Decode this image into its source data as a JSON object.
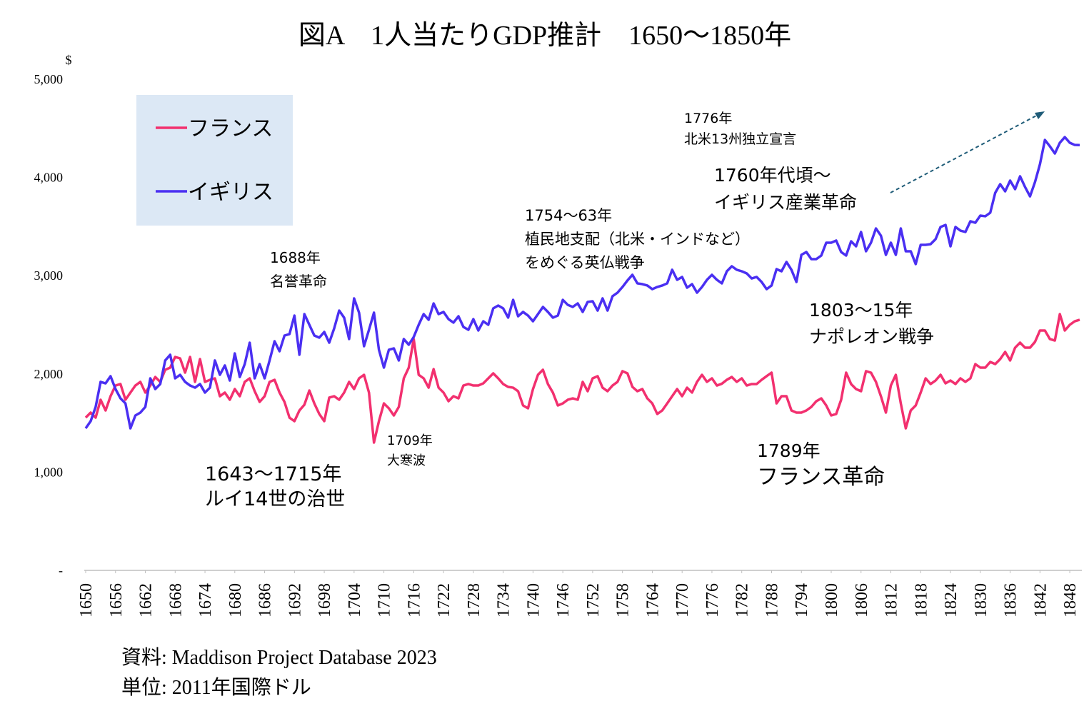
{
  "chart_data": {
    "type": "line",
    "title": "図A　1人当たりGDP推計　1650〜1850年",
    "y_unit": "$",
    "source": "資料: Maddison Project Database 2023",
    "unit_note": "単位: 2011年国際ドル",
    "xlim": [
      1650,
      1850
    ],
    "xticks": [
      1650,
      1656,
      1662,
      1668,
      1674,
      1680,
      1686,
      1692,
      1698,
      1704,
      1710,
      1716,
      1722,
      1728,
      1734,
      1740,
      1746,
      1752,
      1758,
      1764,
      1770,
      1776,
      1782,
      1788,
      1794,
      1800,
      1806,
      1812,
      1818,
      1824,
      1830,
      1836,
      1842,
      1848
    ],
    "ylim": [
      0,
      5000
    ],
    "yticks": [
      {
        "value": 0,
        "label": "-"
      },
      {
        "value": 1000,
        "label": "1,000"
      },
      {
        "value": 2000,
        "label": "2,000"
      },
      {
        "value": 3000,
        "label": "3,000"
      },
      {
        "value": 4000,
        "label": "4,000"
      },
      {
        "value": 5000,
        "label": "5,000"
      }
    ],
    "grid": false,
    "x": [
      1650,
      1651,
      1652,
      1653,
      1654,
      1655,
      1656,
      1657,
      1658,
      1659,
      1660,
      1661,
      1662,
      1663,
      1664,
      1665,
      1666,
      1667,
      1668,
      1669,
      1670,
      1671,
      1672,
      1673,
      1674,
      1675,
      1676,
      1677,
      1678,
      1679,
      1680,
      1681,
      1682,
      1683,
      1684,
      1685,
      1686,
      1687,
      1688,
      1689,
      1690,
      1691,
      1692,
      1693,
      1694,
      1695,
      1696,
      1697,
      1698,
      1699,
      1700,
      1701,
      1702,
      1703,
      1704,
      1705,
      1706,
      1707,
      1708,
      1709,
      1710,
      1711,
      1712,
      1713,
      1714,
      1715,
      1716,
      1717,
      1718,
      1719,
      1720,
      1721,
      1722,
      1723,
      1724,
      1725,
      1726,
      1727,
      1728,
      1729,
      1730,
      1731,
      1732,
      1733,
      1734,
      1735,
      1736,
      1737,
      1738,
      1739,
      1740,
      1741,
      1742,
      1743,
      1744,
      1745,
      1746,
      1747,
      1748,
      1749,
      1750,
      1751,
      1752,
      1753,
      1754,
      1755,
      1756,
      1757,
      1758,
      1759,
      1760,
      1761,
      1762,
      1763,
      1764,
      1765,
      1766,
      1767,
      1768,
      1769,
      1770,
      1771,
      1772,
      1773,
      1774,
      1775,
      1776,
      1777,
      1778,
      1779,
      1780,
      1781,
      1782,
      1783,
      1784,
      1785,
      1786,
      1787,
      1788,
      1789,
      1790,
      1791,
      1792,
      1793,
      1794,
      1795,
      1796,
      1797,
      1798,
      1799,
      1800,
      1801,
      1802,
      1803,
      1804,
      1805,
      1806,
      1807,
      1808,
      1809,
      1810,
      1811,
      1812,
      1813,
      1814,
      1815,
      1816,
      1817,
      1818,
      1819,
      1820,
      1821,
      1822,
      1823,
      1824,
      1825,
      1826,
      1827,
      1828,
      1829,
      1830,
      1831,
      1832,
      1833,
      1834,
      1835,
      1836,
      1837,
      1838,
      1839,
      1840,
      1841,
      1842,
      1843,
      1844,
      1845,
      1846,
      1847,
      1848,
      1849,
      1850
    ],
    "series": [
      {
        "name": "フランス",
        "color": "#f2306f",
        "values": [
          1555,
          1606,
          1555,
          1737,
          1628,
          1773,
          1882,
          1897,
          1737,
          1810,
          1882,
          1919,
          1810,
          1882,
          1969,
          1919,
          2042,
          2064,
          2173,
          2158,
          2013,
          2173,
          1919,
          2151,
          1919,
          1940,
          1955,
          1773,
          1810,
          1737,
          1846,
          1773,
          1919,
          1955,
          1824,
          1715,
          1773,
          1919,
          1940,
          1810,
          1715,
          1555,
          1519,
          1628,
          1686,
          1831,
          1700,
          1592,
          1519,
          1759,
          1773,
          1737,
          1810,
          1919,
          1846,
          1955,
          1991,
          1810,
          1301,
          1519,
          1700,
          1650,
          1577,
          1664,
          1955,
          2064,
          2355,
          1991,
          1955,
          1860,
          2049,
          1860,
          1810,
          1722,
          1773,
          1751,
          1882,
          1897,
          1882,
          1882,
          1904,
          1955,
          2006,
          1955,
          1897,
          1868,
          1860,
          1824,
          1679,
          1650,
          1846,
          1991,
          2042,
          1897,
          1810,
          1679,
          1700,
          1737,
          1751,
          1737,
          1919,
          1824,
          1955,
          1977,
          1860,
          1824,
          1882,
          1919,
          2028,
          2006,
          1868,
          1824,
          1846,
          1751,
          1700,
          1592,
          1628,
          1700,
          1773,
          1846,
          1773,
          1860,
          1810,
          1919,
          1991,
          1919,
          1955,
          1882,
          1900,
          1940,
          1969,
          1919,
          1955,
          1882,
          1897,
          1897,
          1940,
          1977,
          2013,
          1700,
          1773,
          1773,
          1628,
          1606,
          1606,
          1628,
          1664,
          1722,
          1751,
          1679,
          1577,
          1592,
          1737,
          2013,
          1897,
          1846,
          1824,
          2028,
          2013,
          1919,
          1773,
          1606,
          1882,
          1991,
          1700,
          1446,
          1628,
          1679,
          1810,
          1955,
          1897,
          1933,
          1991,
          1904,
          1933,
          1897,
          1955,
          1919,
          1955,
          2100,
          2064,
          2064,
          2122,
          2100,
          2151,
          2224,
          2137,
          2267,
          2318,
          2267,
          2267,
          2326,
          2442,
          2442,
          2355,
          2340,
          2609,
          2442,
          2500,
          2536,
          2551
        ]
      },
      {
        "name": "イギリス",
        "color": "#4a2ff2",
        "values": [
          1446,
          1519,
          1664,
          1919,
          1904,
          1977,
          1846,
          1751,
          1700,
          1446,
          1577,
          1606,
          1664,
          1955,
          1846,
          1897,
          2137,
          2195,
          1955,
          1991,
          1919,
          1882,
          1860,
          1897,
          1810,
          1860,
          2137,
          1991,
          2086,
          1933,
          2209,
          1969,
          2100,
          2318,
          1955,
          2100,
          1955,
          2137,
          2333,
          2231,
          2391,
          2405,
          2594,
          2195,
          2609,
          2500,
          2391,
          2369,
          2427,
          2318,
          2464,
          2645,
          2573,
          2355,
          2769,
          2624,
          2282,
          2449,
          2624,
          2246,
          2064,
          2246,
          2260,
          2137,
          2355,
          2297,
          2376,
          2500,
          2609,
          2551,
          2718,
          2609,
          2631,
          2558,
          2522,
          2587,
          2478,
          2449,
          2558,
          2442,
          2536,
          2500,
          2667,
          2696,
          2667,
          2573,
          2754,
          2587,
          2631,
          2594,
          2536,
          2609,
          2682,
          2631,
          2573,
          2594,
          2754,
          2703,
          2682,
          2718,
          2631,
          2733,
          2740,
          2645,
          2769,
          2645,
          2791,
          2827,
          2885,
          2951,
          3009,
          2922,
          2914,
          2900,
          2863,
          2885,
          2900,
          2922,
          3060,
          2958,
          2987,
          2878,
          2914,
          2827,
          2885,
          2958,
          3009,
          2958,
          2922,
          3045,
          3096,
          3060,
          3045,
          3023,
          2972,
          2987,
          2936,
          2863,
          2900,
          3067,
          3045,
          3140,
          3060,
          2936,
          3212,
          3241,
          3169,
          3169,
          3205,
          3336,
          3336,
          3358,
          3241,
          3205,
          3350,
          3299,
          3445,
          3249,
          3336,
          3481,
          3408,
          3212,
          3336,
          3212,
          3481,
          3249,
          3249,
          3118,
          3314,
          3314,
          3321,
          3372,
          3496,
          3517,
          3299,
          3496,
          3459,
          3445,
          3554,
          3539,
          3612,
          3605,
          3641,
          3844,
          3932,
          3859,
          3968,
          3881,
          4012,
          3903,
          3808,
          3953,
          4135,
          4382,
          4317,
          4244,
          4353,
          4411,
          4353,
          4331,
          4330
        ]
      }
    ],
    "annotations": [
      [
        "1776年",
        "北米13州独立宣言"
      ],
      [
        "1760年代頃〜",
        "イギリス産業革命"
      ],
      [
        "1754〜63年",
        "植民地支配（北米・インドなど）",
        "をめぐる英仏戦争"
      ],
      [
        "1688年",
        "名誉革命"
      ],
      [
        "1803〜15年",
        "ナポレオン戦争"
      ],
      [
        "1709年",
        "大寒波"
      ],
      [
        "1789年",
        "フランス革命"
      ],
      [
        "1643〜1715年",
        "ルイ14世の治世"
      ]
    ]
  }
}
